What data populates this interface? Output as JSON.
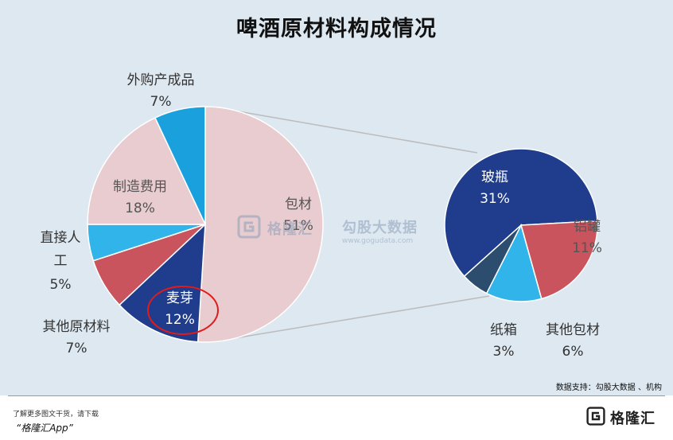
{
  "title": "啤酒原材料构成情况",
  "chart_data": [
    {
      "type": "pie",
      "slices": [
        {
          "label": "包材",
          "value": 51,
          "display": "51%",
          "color": "#e8cccf"
        },
        {
          "label": "麦芽",
          "value": 12,
          "display": "12%",
          "color": "#1f3d8c"
        },
        {
          "label": "其他原材料",
          "value": 7,
          "display": "7%",
          "color": "#c9545e"
        },
        {
          "label": "直接人工",
          "value": 5,
          "display": "5%",
          "color": "#30b4ea"
        },
        {
          "label": "制造费用",
          "value": 18,
          "display": "18%",
          "color": "#e8cccf"
        },
        {
          "label": "外购产成品",
          "value": 7,
          "display": "7%",
          "color": "#1aa1dd"
        }
      ]
    },
    {
      "type": "pie",
      "slices": [
        {
          "label": "玻瓶",
          "value": 31,
          "display": "31%",
          "color": "#1f3d8c"
        },
        {
          "label": "铝罐",
          "value": 11,
          "display": "11%",
          "color": "#c9545e"
        },
        {
          "label": "其他包材",
          "value": 6,
          "display": "6%",
          "color": "#30b4ea"
        },
        {
          "label": "纸箱",
          "value": 3,
          "display": "3%",
          "color": "#2d4d6e"
        }
      ]
    }
  ],
  "highlight_label": "麦芽",
  "source": "数据支持：勾股大数据 、机构",
  "watermark": {
    "brand1": "格隆汇",
    "brand2": "勾股大数据",
    "brand2_url": "www.gogudata.com"
  },
  "footer": {
    "note": "了解更多图文干货，请下载",
    "app": "“格隆汇App”",
    "logo": "格隆汇"
  }
}
